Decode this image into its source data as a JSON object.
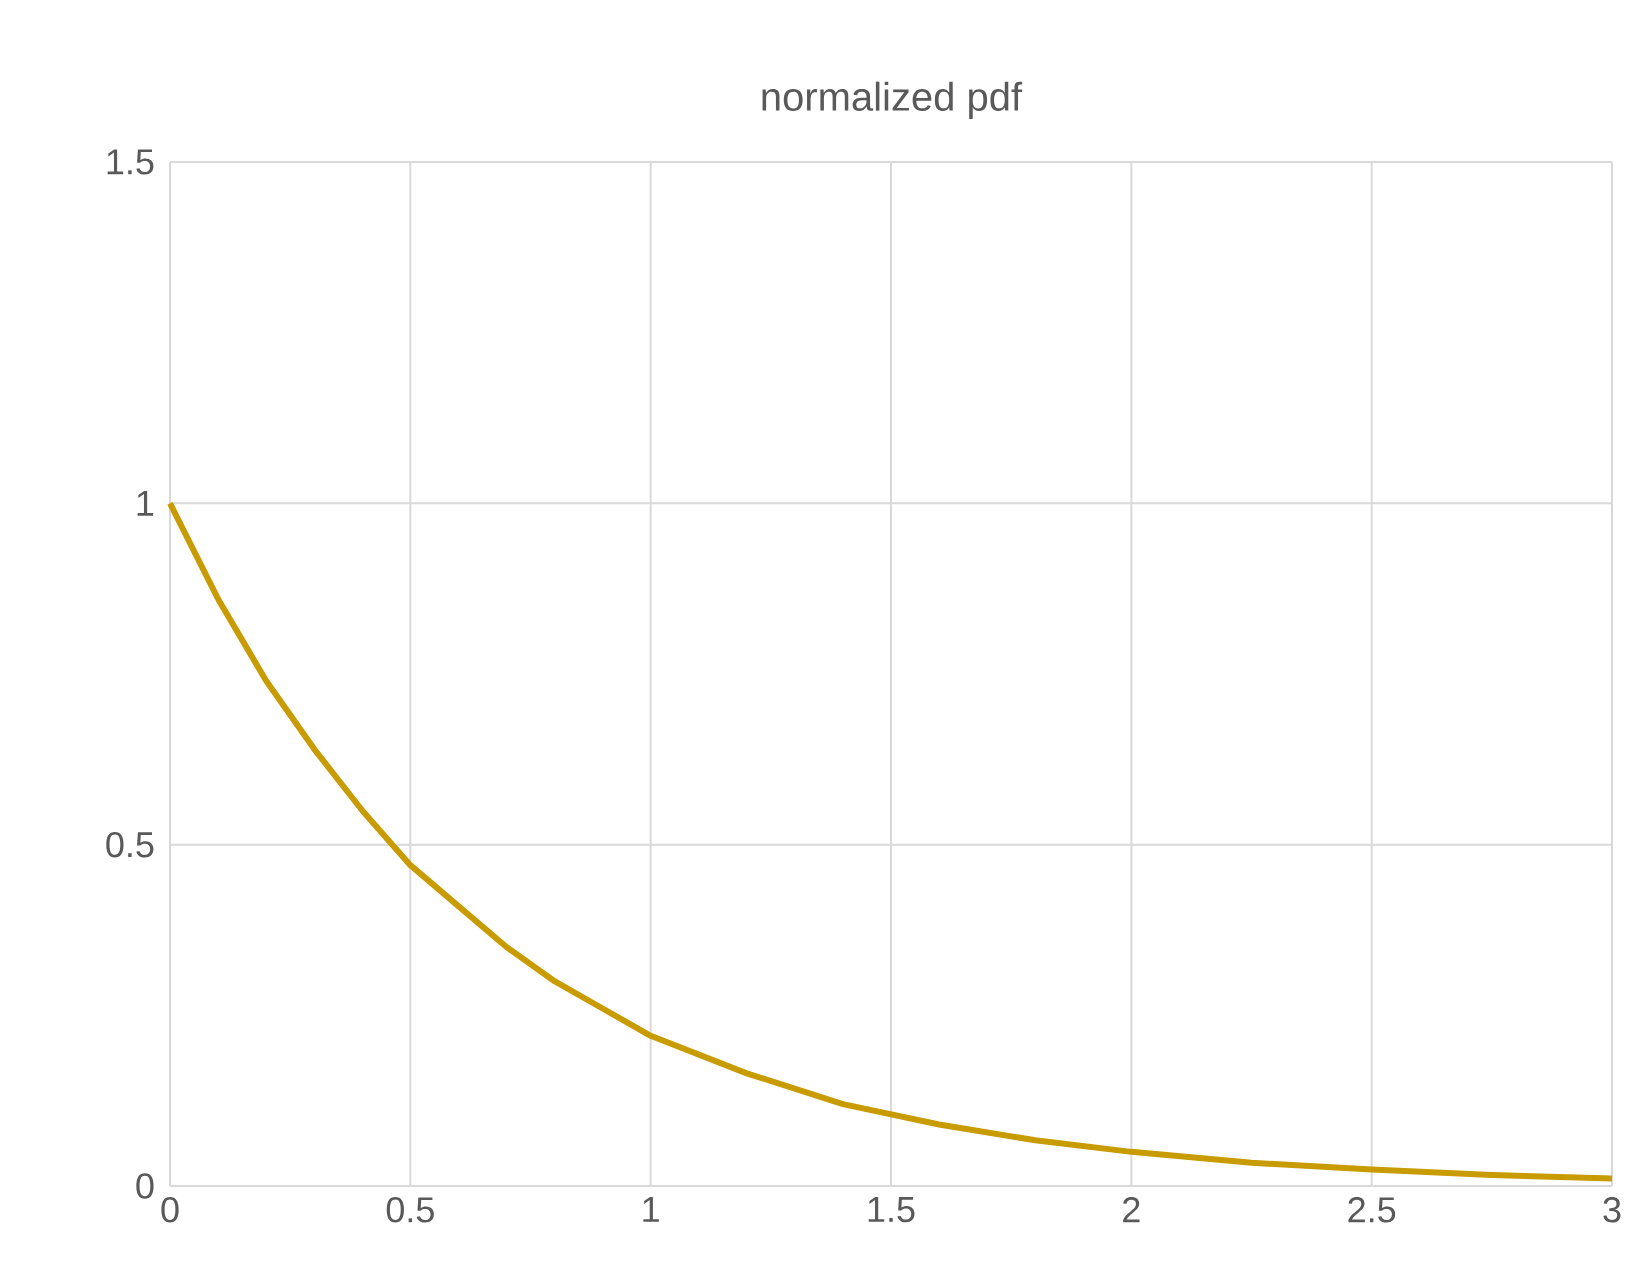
{
  "chart_data": {
    "type": "line",
    "title": "normalized pdf",
    "x": [
      0,
      0.1,
      0.2,
      0.3,
      0.4,
      0.5,
      0.6,
      0.7,
      0.8,
      0.9,
      1.0,
      1.2,
      1.4,
      1.6,
      1.8,
      2.0,
      2.25,
      2.5,
      2.75,
      3.0
    ],
    "values": [
      1,
      0.86,
      0.74,
      0.64,
      0.55,
      0.47,
      0.41,
      0.35,
      0.3,
      0.26,
      0.22,
      0.165,
      0.12,
      0.09,
      0.067,
      0.05,
      0.034,
      0.024,
      0.016,
      0.011
    ],
    "color": "#c89b00",
    "xlim": [
      0,
      3
    ],
    "ylim": [
      0,
      1.5
    ],
    "xticks": [
      0,
      0.5,
      1,
      1.5,
      2,
      2.5,
      3
    ],
    "yticks": [
      0,
      0.5,
      1,
      1.5
    ],
    "grid": true,
    "marker": "none",
    "line_style": "solid"
  }
}
